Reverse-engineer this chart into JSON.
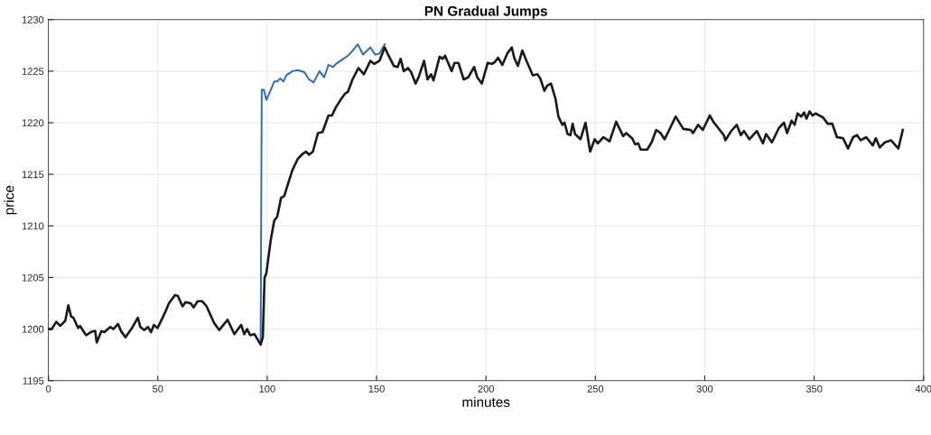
{
  "chart_data": {
    "type": "line",
    "title": "PN Gradual Jumps",
    "xlabel": "minutes",
    "ylabel": "price",
    "xlim": [
      0,
      400
    ],
    "xticks": [
      0,
      50,
      100,
      150,
      200,
      250,
      300,
      350,
      400
    ],
    "ylim": [
      1195,
      1230
    ],
    "yticks": [
      1195,
      1200,
      1205,
      1210,
      1215,
      1220,
      1225,
      1230
    ],
    "grid": true,
    "marker": "none",
    "line_style": "solid",
    "series": [
      {
        "color": "#2a6ab8",
        "x": [
          97.0,
          97.5,
          98.5,
          99.6,
          101.3,
          103.2,
          104.6,
          106.0,
          107.4,
          108.8,
          111.5,
          114.0,
          117.0,
          119.1,
          121.2,
          123.9,
          126.0,
          128.0,
          130.1,
          131.4,
          133.5,
          136.9,
          138.7,
          141.4,
          143.8,
          147.2,
          149.3,
          151.3,
          153.7
        ],
        "values": [
          1198.5,
          1223.2,
          1223.2,
          1222.2,
          1223.0,
          1224.0,
          1224.0,
          1224.3,
          1224.0,
          1224.6,
          1225.0,
          1225.1,
          1224.9,
          1224.2,
          1223.9,
          1225.0,
          1224.4,
          1225.6,
          1225.4,
          1225.7,
          1226.0,
          1226.5,
          1226.9,
          1227.6,
          1226.6,
          1227.3,
          1226.6,
          1226.7,
          1227.6
        ]
      },
      {
        "color": "#1a1a1a",
        "x": [
          0,
          1.5,
          3.6,
          5.4,
          7.7,
          9.1,
          10.4,
          11.4,
          13.6,
          14.5,
          16.6,
          17.3,
          19.4,
          20.7,
          21.4,
          22.1,
          24.2,
          25.6,
          28.3,
          29.7,
          31.8,
          33.2,
          35.2,
          37.9,
          40.9,
          42.0,
          43.8,
          45.5,
          46.9,
          48.2,
          49.9,
          52.4,
          53.5,
          55.1,
          57.9,
          59.2,
          61.3,
          62.7,
          65.0,
          66.4,
          68.2,
          70.2,
          72.3,
          75.7,
          78.1,
          79.6,
          81.9,
          85.0,
          88.1,
          89.5,
          90.8,
          92.2,
          94.2,
          97.0,
          98.0,
          98.8,
          99.6,
          101.6,
          103.2,
          104.6,
          106.3,
          107.8,
          109.4,
          111.5,
          114.0,
          116.3,
          117.7,
          119.1,
          120.9,
          123.2,
          125.3,
          128.0,
          129.6,
          131.4,
          133.5,
          135.5,
          136.9,
          139.0,
          141.7,
          144.2,
          147.2,
          148.9,
          151.3,
          153.7,
          155.5,
          157.9,
          159.6,
          161.0,
          162.4,
          164.4,
          165.8,
          167.8,
          169.2,
          171.7,
          173.3,
          174.9,
          176.0,
          178.8,
          180.2,
          181.3,
          184.3,
          185.6,
          187.4,
          189.8,
          191.9,
          194.6,
          196.0,
          198.1,
          200.8,
          202.7,
          204.1,
          205.5,
          207.5,
          209.7,
          211.8,
          212.9,
          214.6,
          216.6,
          218.7,
          221.4,
          223.5,
          224.8,
          226.7,
          228.0,
          229.7,
          231.8,
          233.1,
          234.9,
          235.9,
          237.3,
          238.6,
          239.6,
          240.7,
          243.2,
          245.5,
          247.6,
          249.7,
          251.1,
          253.7,
          256.5,
          259.5,
          262.7,
          264.1,
          266.8,
          268.2,
          269.6,
          270.7,
          273.7,
          275.7,
          277.8,
          279.8,
          281.6,
          283.3,
          286.7,
          290.2,
          293.6,
          294.6,
          297.0,
          299.1,
          302.3,
          303.9,
          308.7,
          309.4,
          312.1,
          314.6,
          316.5,
          317.9,
          320.4,
          323.8,
          326.6,
          328.0,
          330.7,
          333.9,
          336.2,
          337.6,
          339.7,
          341.1,
          342.4,
          344.1,
          345.4,
          346.5,
          347.9,
          349.3,
          350.6,
          354.1,
          356.2,
          358.3,
          360.4,
          363.2,
          365.5,
          367.8,
          369.6,
          371.3,
          373.8,
          376.8,
          378.2,
          380.0,
          382.3,
          385.1,
          388.5,
          390.5
        ],
        "values": [
          1200.0,
          1200.0,
          1200.7,
          1200.3,
          1200.8,
          1202.3,
          1201.2,
          1201.1,
          1200.1,
          1200.3,
          1199.6,
          1199.4,
          1199.7,
          1199.8,
          1199.8,
          1198.7,
          1199.8,
          1199.7,
          1200.2,
          1200.0,
          1200.5,
          1199.8,
          1199.2,
          1200.0,
          1201.1,
          1200.2,
          1199.9,
          1200.2,
          1199.7,
          1200.4,
          1200.1,
          1201.2,
          1201.7,
          1202.5,
          1203.3,
          1203.2,
          1202.2,
          1202.6,
          1202.5,
          1202.1,
          1202.7,
          1202.7,
          1202.2,
          1200.6,
          1199.9,
          1200.3,
          1200.9,
          1199.5,
          1200.4,
          1199.5,
          1200.0,
          1199.4,
          1199.5,
          1198.5,
          1199.2,
          1205.0,
          1205.4,
          1208.6,
          1210.5,
          1210.9,
          1212.7,
          1212.9,
          1214.0,
          1215.4,
          1216.5,
          1217.0,
          1217.2,
          1216.9,
          1217.2,
          1219.0,
          1219.1,
          1220.7,
          1220.7,
          1221.5,
          1222.2,
          1222.8,
          1223.0,
          1224.2,
          1225.3,
          1224.7,
          1226.0,
          1225.7,
          1226.0,
          1227.3,
          1226.5,
          1225.5,
          1225.4,
          1226.2,
          1225.0,
          1225.3,
          1224.9,
          1223.8,
          1224.4,
          1226.0,
          1224.2,
          1224.7,
          1224.1,
          1226.4,
          1226.2,
          1226.5,
          1225.0,
          1225.8,
          1225.8,
          1224.2,
          1224.4,
          1225.4,
          1224.4,
          1223.8,
          1225.8,
          1225.7,
          1225.9,
          1226.3,
          1225.6,
          1226.7,
          1227.3,
          1226.3,
          1225.5,
          1227.0,
          1225.9,
          1224.6,
          1224.7,
          1224.3,
          1223.1,
          1223.6,
          1223.8,
          1222.3,
          1220.6,
          1219.8,
          1220.0,
          1218.9,
          1218.8,
          1219.9,
          1218.9,
          1218.4,
          1220.0,
          1217.2,
          1218.4,
          1218.0,
          1218.6,
          1218.2,
          1220.1,
          1218.7,
          1219.0,
          1218.5,
          1217.9,
          1218.0,
          1217.4,
          1217.4,
          1218.1,
          1219.3,
          1219.0,
          1218.4,
          1219.1,
          1220.6,
          1219.4,
          1219.3,
          1219.0,
          1219.8,
          1219.3,
          1220.7,
          1220.1,
          1218.8,
          1218.3,
          1219.2,
          1219.8,
          1218.8,
          1219.2,
          1218.4,
          1219.2,
          1218.0,
          1218.9,
          1218.1,
          1219.5,
          1220.0,
          1219.0,
          1220.2,
          1219.8,
          1220.9,
          1220.6,
          1221.0,
          1220.4,
          1221.1,
          1220.7,
          1220.9,
          1220.5,
          1219.9,
          1219.9,
          1218.6,
          1218.5,
          1217.5,
          1218.6,
          1218.8,
          1218.3,
          1218.6,
          1217.8,
          1218.5,
          1217.6,
          1218.1,
          1218.3,
          1217.5,
          1219.3
        ]
      }
    ]
  }
}
